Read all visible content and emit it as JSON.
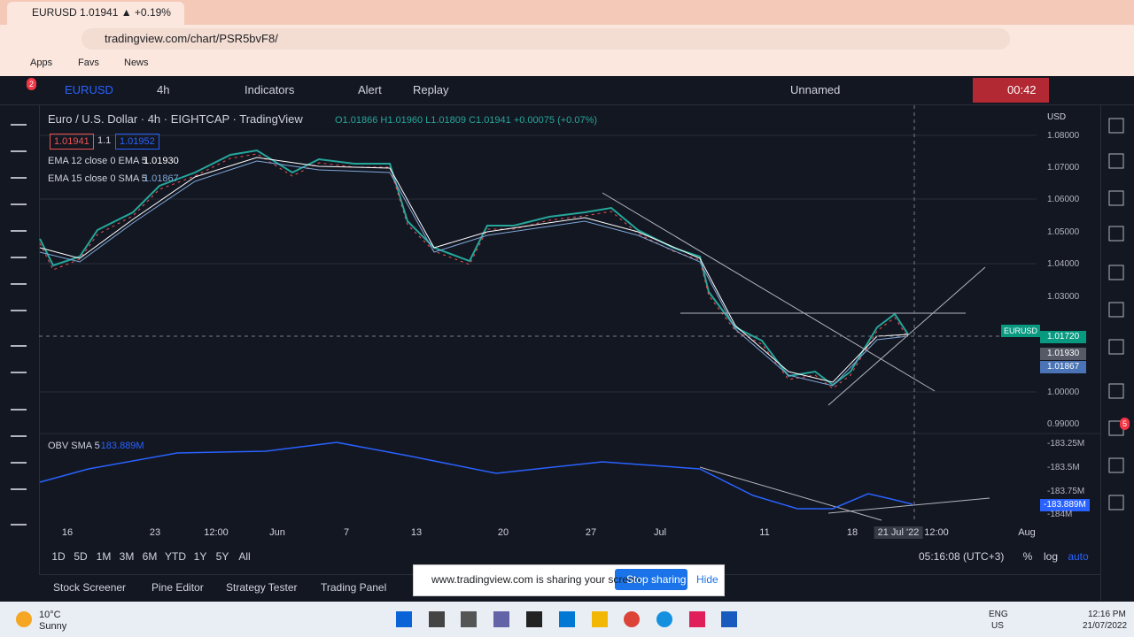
{
  "browser": {
    "tab_title": "EURUSD 1.01941 ▲ +0.19%",
    "url": "tradingview.com/chart/PSR5bvF8/",
    "bookmarks": [
      "Apps",
      "Favs",
      "News"
    ]
  },
  "toolbar": {
    "notifications": "2",
    "symbol": "EURUSD",
    "interval": "4h",
    "indicators": "Indicators",
    "alert": "Alert",
    "replay": "Replay",
    "layout": "Unnamed",
    "timer": "00:42"
  },
  "chart": {
    "title": "Euro / U.S. Dollar · 4h · EIGHTCAP · TradingView",
    "ohlc": "O1.01866 H1.01960 L1.01809 C1.01941 +0.00075 (+0.07%)",
    "bid": "1.01941",
    "spread": "1.1",
    "ask": "1.01952",
    "ema1": "EMA 12 close 0 EMA 5",
    "ema1_value": "1.01930",
    "ema2": "EMA 15 close 0 SMA 5",
    "ema2_value": "1.01867",
    "currency": "USD",
    "price_labels": [
      "1.08000",
      "1.07000",
      "1.06000",
      "1.05000",
      "1.04000",
      "1.03000",
      "1.00000",
      "0.99000"
    ],
    "tags": [
      "EURUSD",
      "1.01720",
      "1.01930",
      "1.01867"
    ],
    "obv": "OBV SMA 5",
    "obv_value": "-183.889M",
    "obv_labels": [
      "-183.25M",
      "-183.5M",
      "-183.75M",
      "-183.889M",
      "-184M"
    ],
    "time_labels": [
      "16",
      "23",
      "12:00",
      "Jun",
      "7",
      "13",
      "20",
      "27",
      "Jul",
      "11",
      "18",
      "21 Jul '22",
      "12:00",
      "Aug"
    ]
  },
  "ranges": [
    "1D",
    "5D",
    "1M",
    "3M",
    "6M",
    "YTD",
    "1Y",
    "5Y",
    "All"
  ],
  "clock": "05:16:08 (UTC+3)",
  "scale_options": [
    "%",
    "log",
    "auto"
  ],
  "bottom_tabs": [
    "Stock Screener",
    "Pine Editor",
    "Strategy Tester",
    "Trading Panel"
  ],
  "share_bar": {
    "message": "www.tradingview.com is sharing your screen.",
    "stop": "Stop sharing",
    "hide": "Hide"
  },
  "sidebar_badge": "5",
  "taskbar": {
    "temperature": "10°C",
    "weather": "Sunny",
    "language": [
      "ENG",
      "US"
    ],
    "time": "12:16 PM",
    "date": "21/07/2022"
  }
}
